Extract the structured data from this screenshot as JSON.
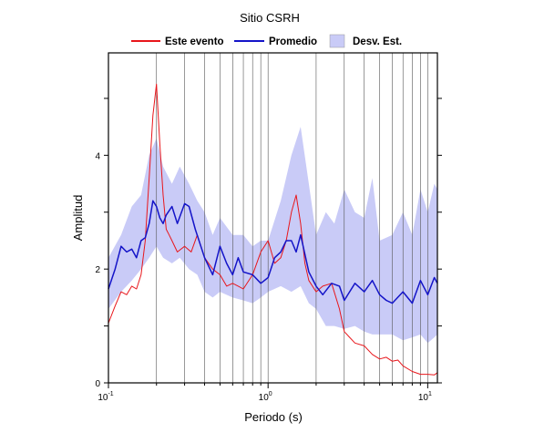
{
  "chart_data": {
    "type": "line",
    "title": "Sitio CSRH",
    "xlabel": "Periodo (s)",
    "ylabel": "Amplitud",
    "x_scale": "log",
    "xlim": [
      0.1,
      11.5
    ],
    "ylim": [
      0,
      5.8
    ],
    "grid": "x-axis log grid, vertical lines",
    "legend_position": "top",
    "x_ticks": [
      {
        "value": 0.1,
        "base": "10",
        "exp": "-1"
      },
      {
        "value": 1,
        "base": "10",
        "exp": "0"
      },
      {
        "value": 10,
        "base": "10",
        "exp": "1"
      }
    ],
    "y_ticks": [
      {
        "value": 0,
        "label": "0"
      },
      {
        "value": 2,
        "label": "2"
      },
      {
        "value": 4,
        "label": "4"
      }
    ],
    "legend": [
      {
        "label": "Este evento",
        "kind": "line",
        "color": "#e8161b"
      },
      {
        "label": "Promedio",
        "kind": "line",
        "color": "#1414c8"
      },
      {
        "label": "Desv. Est.",
        "kind": "band",
        "color": "#c9cbf7"
      }
    ],
    "series": [
      {
        "name": "Este evento",
        "color": "#e8161b",
        "x": [
          0.1,
          0.11,
          0.12,
          0.13,
          0.14,
          0.15,
          0.16,
          0.17,
          0.18,
          0.19,
          0.2,
          0.21,
          0.22,
          0.23,
          0.24,
          0.25,
          0.27,
          0.3,
          0.33,
          0.36,
          0.4,
          0.45,
          0.5,
          0.55,
          0.6,
          0.65,
          0.7,
          0.8,
          0.9,
          1.0,
          1.1,
          1.2,
          1.3,
          1.4,
          1.5,
          1.6,
          1.7,
          1.8,
          2.0,
          2.2,
          2.5,
          2.8,
          3.0,
          3.5,
          4.0,
          4.5,
          5.0,
          5.5,
          6.0,
          6.5,
          7.0,
          8.0,
          9.0,
          10.0,
          11.0,
          11.5
        ],
        "values": [
          1.05,
          1.35,
          1.6,
          1.55,
          1.7,
          1.65,
          1.9,
          2.5,
          3.6,
          4.7,
          5.25,
          4.2,
          3.3,
          2.7,
          2.6,
          2.5,
          2.3,
          2.4,
          2.3,
          2.6,
          2.2,
          2.0,
          1.9,
          1.7,
          1.75,
          1.7,
          1.65,
          1.9,
          2.3,
          2.5,
          2.1,
          2.2,
          2.5,
          3.0,
          3.3,
          2.8,
          2.1,
          1.8,
          1.6,
          1.7,
          1.75,
          1.3,
          0.9,
          0.7,
          0.65,
          0.5,
          0.42,
          0.45,
          0.38,
          0.4,
          0.3,
          0.2,
          0.15,
          0.15,
          0.14,
          0.18
        ]
      },
      {
        "name": "Promedio",
        "color": "#1414c8",
        "x": [
          0.1,
          0.11,
          0.12,
          0.13,
          0.14,
          0.15,
          0.16,
          0.17,
          0.18,
          0.19,
          0.2,
          0.21,
          0.22,
          0.23,
          0.25,
          0.27,
          0.3,
          0.32,
          0.35,
          0.4,
          0.45,
          0.5,
          0.55,
          0.6,
          0.65,
          0.7,
          0.8,
          0.9,
          1.0,
          1.1,
          1.2,
          1.3,
          1.4,
          1.5,
          1.6,
          1.8,
          2.0,
          2.2,
          2.5,
          2.8,
          3.0,
          3.5,
          4.0,
          4.5,
          5.0,
          5.5,
          6.0,
          7.0,
          8.0,
          9.0,
          10.0,
          11.0,
          11.5
        ],
        "values": [
          1.65,
          2.0,
          2.4,
          2.3,
          2.35,
          2.2,
          2.5,
          2.55,
          2.8,
          3.2,
          3.1,
          2.9,
          2.8,
          2.95,
          3.1,
          2.8,
          3.15,
          3.1,
          2.7,
          2.2,
          1.9,
          2.4,
          2.1,
          1.9,
          2.2,
          1.95,
          1.9,
          1.75,
          1.85,
          2.2,
          2.3,
          2.5,
          2.5,
          2.3,
          2.6,
          1.95,
          1.7,
          1.55,
          1.75,
          1.7,
          1.45,
          1.75,
          1.6,
          1.8,
          1.55,
          1.45,
          1.4,
          1.6,
          1.4,
          1.8,
          1.55,
          1.85,
          1.75
        ]
      }
    ],
    "band": {
      "name": "Desv. Est.",
      "x": [
        0.1,
        0.12,
        0.14,
        0.16,
        0.18,
        0.2,
        0.22,
        0.25,
        0.28,
        0.32,
        0.36,
        0.4,
        0.45,
        0.5,
        0.6,
        0.7,
        0.8,
        0.9,
        1.0,
        1.2,
        1.4,
        1.6,
        1.8,
        2.0,
        2.3,
        2.6,
        3.0,
        3.5,
        4.0,
        4.5,
        5.0,
        6.0,
        7.0,
        8.0,
        9.0,
        10.0,
        11.0,
        11.5
      ],
      "upper": [
        2.2,
        2.6,
        3.1,
        3.3,
        4.0,
        4.3,
        3.8,
        3.5,
        3.8,
        3.5,
        3.2,
        3.0,
        2.6,
        2.9,
        2.6,
        2.6,
        2.4,
        2.5,
        2.5,
        3.2,
        4.0,
        4.5,
        3.5,
        2.6,
        3.0,
        2.8,
        3.4,
        3.0,
        2.9,
        3.6,
        2.5,
        2.6,
        3.0,
        2.6,
        3.4,
        3.0,
        3.5,
        3.4
      ],
      "lower": [
        1.3,
        1.6,
        1.8,
        2.0,
        2.2,
        2.4,
        2.2,
        2.1,
        2.2,
        2.0,
        1.9,
        1.6,
        1.5,
        1.6,
        1.5,
        1.45,
        1.4,
        1.5,
        1.6,
        1.7,
        1.6,
        1.7,
        1.4,
        1.3,
        1.0,
        1.0,
        0.95,
        1.0,
        0.9,
        0.85,
        0.85,
        0.85,
        0.75,
        0.8,
        0.85,
        0.7,
        0.8,
        0.85
      ]
    }
  }
}
